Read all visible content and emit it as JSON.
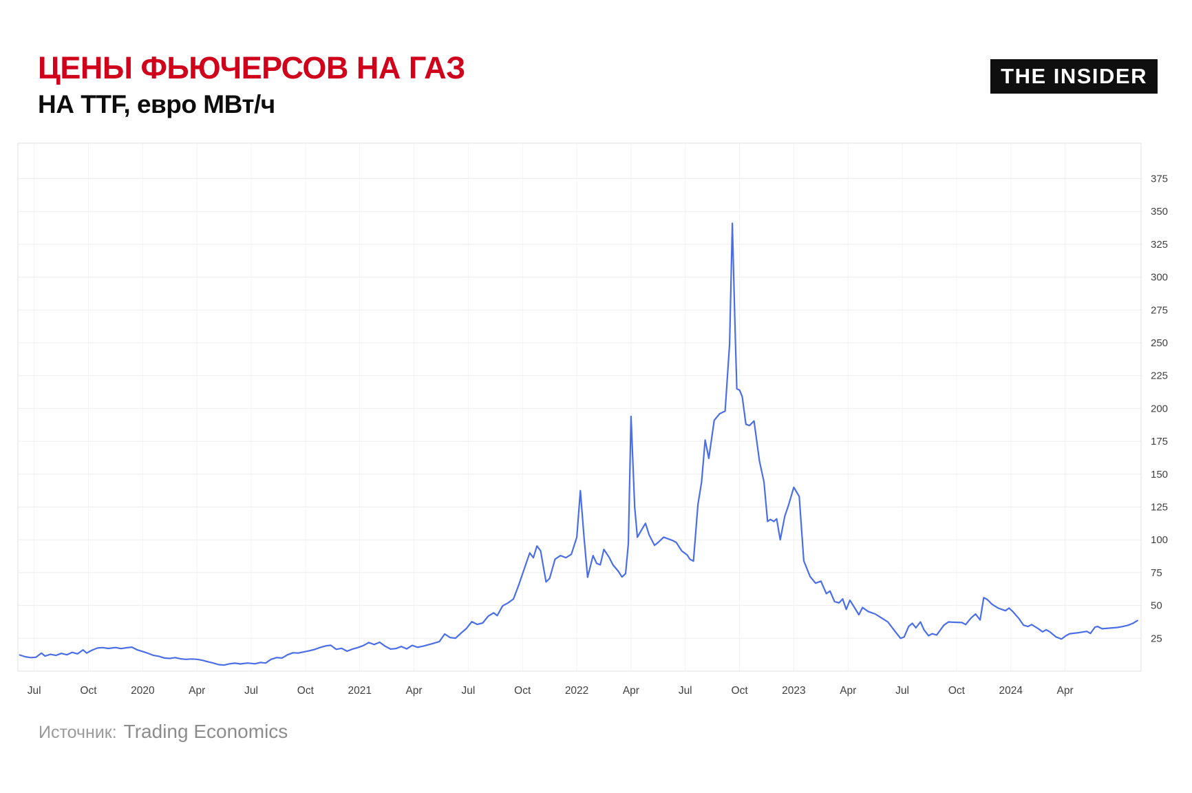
{
  "page": {
    "title": "ЦЕНЫ ФЬЮЧЕРСОВ НА ГАЗ",
    "subtitle": "НА TTF, евро МВт/ч",
    "logo_text": "THE INSIDER",
    "source_label": "Источник:",
    "source_value": "Trading Economics"
  },
  "colors": {
    "title_red": "#d0021b",
    "line_blue": "#4a6de8",
    "logo_bg": "#0f0f0f",
    "logo_text": "#ffffff",
    "grid_horizontal": "#ededed",
    "grid_vertical": "#f4f4f4",
    "plot_border": "#e0e0e0",
    "axis_label": "#3f3f3f",
    "source_gray": "#9a9a9a"
  },
  "chart_data": {
    "type": "line",
    "title": "ЦЕНЫ ФЬЮЧЕРСОВ НА ГАЗ",
    "subtitle": "НА TTF, евро МВт/ч",
    "unit": "евро МВт/ч",
    "legend": "none",
    "grid": "on",
    "x_axis": {
      "t_unit": "months since 2019-06",
      "t_range": [
        0.1,
        62.2
      ],
      "ticks": [
        {
          "t": 1,
          "label": "Jul"
        },
        {
          "t": 4,
          "label": "Oct"
        },
        {
          "t": 7,
          "label": "2020"
        },
        {
          "t": 10,
          "label": "Apr"
        },
        {
          "t": 13,
          "label": "Jul"
        },
        {
          "t": 16,
          "label": "Oct"
        },
        {
          "t": 19,
          "label": "2021"
        },
        {
          "t": 22,
          "label": "Apr"
        },
        {
          "t": 25,
          "label": "Jul"
        },
        {
          "t": 28,
          "label": "Oct"
        },
        {
          "t": 31,
          "label": "2022"
        },
        {
          "t": 34,
          "label": "Apr"
        },
        {
          "t": 37,
          "label": "Jul"
        },
        {
          "t": 40,
          "label": "Oct"
        },
        {
          "t": 43,
          "label": "2023"
        },
        {
          "t": 46,
          "label": "Apr"
        },
        {
          "t": 49,
          "label": "Jul"
        },
        {
          "t": 52,
          "label": "Oct"
        },
        {
          "t": 55,
          "label": "2024"
        },
        {
          "t": 58,
          "label": "Apr"
        }
      ]
    },
    "y_axis": {
      "min": 0,
      "max": 402,
      "tick_min": 25,
      "tick_max": 375,
      "tick_step": 25,
      "side": "right",
      "tick_labels": [
        "25",
        "50",
        "75",
        "100",
        "125",
        "150",
        "175",
        "200",
        "225",
        "250",
        "275",
        "300",
        "325",
        "350",
        "375"
      ]
    },
    "key_values": {
      "start_mid_2019": 12,
      "low_mid_2020": 5,
      "spike_oct_2021": 95,
      "spike_dec_2021": 137,
      "spike_mar_2022": 194,
      "peak_aug_sep_2022": 341,
      "rebound_dec_2022": 140,
      "low_jun_2023": 25,
      "spike_oct_nov_2023": 56,
      "low_feb_2024": 24.5,
      "end_value": 38.5
    },
    "series": [
      {
        "name": "TTF gas futures price",
        "color": "#4a6de8",
        "points": [
          [
            0.2,
            12.3
          ],
          [
            0.5,
            11.0
          ],
          [
            0.8,
            10.3
          ],
          [
            1.1,
            10.6
          ],
          [
            1.4,
            13.8
          ],
          [
            1.6,
            11.5
          ],
          [
            1.9,
            12.8
          ],
          [
            2.2,
            12.0
          ],
          [
            2.5,
            13.5
          ],
          [
            2.8,
            12.5
          ],
          [
            3.1,
            14.3
          ],
          [
            3.4,
            13.2
          ],
          [
            3.7,
            16.2
          ],
          [
            3.9,
            13.8
          ],
          [
            4.2,
            16.0
          ],
          [
            4.5,
            17.6
          ],
          [
            4.8,
            17.9
          ],
          [
            5.1,
            17.3
          ],
          [
            5.5,
            18.0
          ],
          [
            5.8,
            17.2
          ],
          [
            6.1,
            17.8
          ],
          [
            6.4,
            18.3
          ],
          [
            6.7,
            16.2
          ],
          [
            7.0,
            15.0
          ],
          [
            7.3,
            13.6
          ],
          [
            7.6,
            12.0
          ],
          [
            7.9,
            11.3
          ],
          [
            8.2,
            10.0
          ],
          [
            8.5,
            9.7
          ],
          [
            8.8,
            10.3
          ],
          [
            9.1,
            9.4
          ],
          [
            9.4,
            9.0
          ],
          [
            9.7,
            9.3
          ],
          [
            10.0,
            9.0
          ],
          [
            10.3,
            8.3
          ],
          [
            10.6,
            7.2
          ],
          [
            10.9,
            6.2
          ],
          [
            11.2,
            5.0
          ],
          [
            11.5,
            4.6
          ],
          [
            11.8,
            5.6
          ],
          [
            12.1,
            6.1
          ],
          [
            12.4,
            5.5
          ],
          [
            12.8,
            6.2
          ],
          [
            13.2,
            5.6
          ],
          [
            13.5,
            6.6
          ],
          [
            13.8,
            6.2
          ],
          [
            14.1,
            9.0
          ],
          [
            14.4,
            10.3
          ],
          [
            14.7,
            10.0
          ],
          [
            15.0,
            12.4
          ],
          [
            15.3,
            14.0
          ],
          [
            15.6,
            13.8
          ],
          [
            15.9,
            14.6
          ],
          [
            16.2,
            15.5
          ],
          [
            16.5,
            16.5
          ],
          [
            16.8,
            18.0
          ],
          [
            17.1,
            19.2
          ],
          [
            17.4,
            19.7
          ],
          [
            17.7,
            16.6
          ],
          [
            18.0,
            17.4
          ],
          [
            18.3,
            15.2
          ],
          [
            18.6,
            16.8
          ],
          [
            18.9,
            18.0
          ],
          [
            19.2,
            19.5
          ],
          [
            19.5,
            21.8
          ],
          [
            19.8,
            20.3
          ],
          [
            20.1,
            22.0
          ],
          [
            20.4,
            19.0
          ],
          [
            20.7,
            16.8
          ],
          [
            21.0,
            17.2
          ],
          [
            21.3,
            18.8
          ],
          [
            21.6,
            17.0
          ],
          [
            21.9,
            19.6
          ],
          [
            22.2,
            18.2
          ],
          [
            22.5,
            19.0
          ],
          [
            22.8,
            20.1
          ],
          [
            23.1,
            21.3
          ],
          [
            23.4,
            22.5
          ],
          [
            23.7,
            28.3
          ],
          [
            24.0,
            25.6
          ],
          [
            24.3,
            25.1
          ],
          [
            24.6,
            29.0
          ],
          [
            24.9,
            32.5
          ],
          [
            25.2,
            37.7
          ],
          [
            25.5,
            35.6
          ],
          [
            25.8,
            36.7
          ],
          [
            26.1,
            41.8
          ],
          [
            26.4,
            44.4
          ],
          [
            26.6,
            42.3
          ],
          [
            26.9,
            49.7
          ],
          [
            27.2,
            52.0
          ],
          [
            27.5,
            55.0
          ],
          [
            27.8,
            66.0
          ],
          [
            28.1,
            78.0
          ],
          [
            28.4,
            90.0
          ],
          [
            28.6,
            86.4
          ],
          [
            28.8,
            95.3
          ],
          [
            29.0,
            91.6
          ],
          [
            29.3,
            68.0
          ],
          [
            29.5,
            70.6
          ],
          [
            29.8,
            85.3
          ],
          [
            30.1,
            88.0
          ],
          [
            30.4,
            86.4
          ],
          [
            30.7,
            89.0
          ],
          [
            31.0,
            102.0
          ],
          [
            31.2,
            137.5
          ],
          [
            31.4,
            102.0
          ],
          [
            31.6,
            71.5
          ],
          [
            31.9,
            88.0
          ],
          [
            32.1,
            82.0
          ],
          [
            32.3,
            81.0
          ],
          [
            32.5,
            92.7
          ],
          [
            32.8,
            86.4
          ],
          [
            33.0,
            81.0
          ],
          [
            33.3,
            76.0
          ],
          [
            33.5,
            71.7
          ],
          [
            33.7,
            74.3
          ],
          [
            33.85,
            97.0
          ],
          [
            34.0,
            194.0
          ],
          [
            34.2,
            125.0
          ],
          [
            34.35,
            102.0
          ],
          [
            34.6,
            108.0
          ],
          [
            34.8,
            112.6
          ],
          [
            35.0,
            103.7
          ],
          [
            35.3,
            95.8
          ],
          [
            35.5,
            98.0
          ],
          [
            35.8,
            102.0
          ],
          [
            36.0,
            101.0
          ],
          [
            36.3,
            99.5
          ],
          [
            36.5,
            98.0
          ],
          [
            36.8,
            91.6
          ],
          [
            37.1,
            88.5
          ],
          [
            37.25,
            85.3
          ],
          [
            37.45,
            83.8
          ],
          [
            37.7,
            126.8
          ],
          [
            37.9,
            144.0
          ],
          [
            38.1,
            176.0
          ],
          [
            38.3,
            162.0
          ],
          [
            38.6,
            191.0
          ],
          [
            38.9,
            196.0
          ],
          [
            39.2,
            198.0
          ],
          [
            39.45,
            249.0
          ],
          [
            39.6,
            341.0
          ],
          [
            39.75,
            262.0
          ],
          [
            39.85,
            215.0
          ],
          [
            40.0,
            214.0
          ],
          [
            40.15,
            209.0
          ],
          [
            40.35,
            188.0
          ],
          [
            40.55,
            187.0
          ],
          [
            40.8,
            190.5
          ],
          [
            41.1,
            160.0
          ],
          [
            41.35,
            144.0
          ],
          [
            41.55,
            114.0
          ],
          [
            41.7,
            115.5
          ],
          [
            41.9,
            114.0
          ],
          [
            42.05,
            116.0
          ],
          [
            42.25,
            100.0
          ],
          [
            42.5,
            118.0
          ],
          [
            42.7,
            126.0
          ],
          [
            43.0,
            140.0
          ],
          [
            43.3,
            133.0
          ],
          [
            43.55,
            84.0
          ],
          [
            43.9,
            72.0
          ],
          [
            44.2,
            67.0
          ],
          [
            44.5,
            68.5
          ],
          [
            44.8,
            59.0
          ],
          [
            45.0,
            61.0
          ],
          [
            45.25,
            53.0
          ],
          [
            45.5,
            52.0
          ],
          [
            45.7,
            55.0
          ],
          [
            45.9,
            47.0
          ],
          [
            46.1,
            54.0
          ],
          [
            46.35,
            48.5
          ],
          [
            46.6,
            43.0
          ],
          [
            46.8,
            48.5
          ],
          [
            47.1,
            45.5
          ],
          [
            47.5,
            43.5
          ],
          [
            47.85,
            40.5
          ],
          [
            48.2,
            37.5
          ],
          [
            48.5,
            32.0
          ],
          [
            48.9,
            25.0
          ],
          [
            49.1,
            26.0
          ],
          [
            49.35,
            34.0
          ],
          [
            49.55,
            36.5
          ],
          [
            49.75,
            33.0
          ],
          [
            50.0,
            37.5
          ],
          [
            50.2,
            31.5
          ],
          [
            50.45,
            27.0
          ],
          [
            50.65,
            28.5
          ],
          [
            50.9,
            27.5
          ],
          [
            51.3,
            35.0
          ],
          [
            51.55,
            37.5
          ],
          [
            51.9,
            37.2
          ],
          [
            52.3,
            37.0
          ],
          [
            52.5,
            35.5
          ],
          [
            52.8,
            40.5
          ],
          [
            53.05,
            43.5
          ],
          [
            53.3,
            39.0
          ],
          [
            53.5,
            56.0
          ],
          [
            53.7,
            54.5
          ],
          [
            53.95,
            51.0
          ],
          [
            54.3,
            48.0
          ],
          [
            54.7,
            46.0
          ],
          [
            54.9,
            48.0
          ],
          [
            55.1,
            45.5
          ],
          [
            55.45,
            40.0
          ],
          [
            55.7,
            35.0
          ],
          [
            55.95,
            34.0
          ],
          [
            56.15,
            35.5
          ],
          [
            56.5,
            32.5
          ],
          [
            56.75,
            30.0
          ],
          [
            56.95,
            31.5
          ],
          [
            57.15,
            30.0
          ],
          [
            57.5,
            26.0
          ],
          [
            57.8,
            24.5
          ],
          [
            58.05,
            27.0
          ],
          [
            58.25,
            28.5
          ],
          [
            58.75,
            29.3
          ],
          [
            59.2,
            30.3
          ],
          [
            59.4,
            28.7
          ],
          [
            59.65,
            33.5
          ],
          [
            59.8,
            34.0
          ],
          [
            60.05,
            32.3
          ],
          [
            60.5,
            32.8
          ],
          [
            60.9,
            33.3
          ],
          [
            61.2,
            34.0
          ],
          [
            61.5,
            35.0
          ],
          [
            61.75,
            36.5
          ],
          [
            62.0,
            38.5
          ]
        ]
      }
    ]
  }
}
